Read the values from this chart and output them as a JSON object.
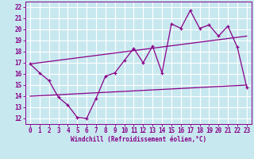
{
  "bg_color": "#c8e8f0",
  "line_color": "#880088",
  "grid_color": "#ffffff",
  "xlim": [
    -0.5,
    23.5
  ],
  "ylim": [
    11.5,
    22.5
  ],
  "xticks": [
    0,
    1,
    2,
    3,
    4,
    5,
    6,
    7,
    8,
    9,
    10,
    11,
    12,
    13,
    14,
    15,
    16,
    17,
    18,
    19,
    20,
    21,
    22,
    23
  ],
  "yticks": [
    12,
    13,
    14,
    15,
    16,
    17,
    18,
    19,
    20,
    21,
    22
  ],
  "xlabel": "Windchill (Refroidissement éolien,°C)",
  "main_x": [
    0,
    1,
    2,
    3,
    4,
    5,
    6,
    7,
    8,
    9,
    10,
    11,
    12,
    13,
    14,
    15,
    16,
    17,
    18,
    19,
    20,
    21,
    22,
    23
  ],
  "main_y": [
    16.9,
    16.1,
    15.4,
    13.9,
    13.2,
    12.1,
    12.0,
    13.8,
    15.8,
    16.1,
    17.2,
    18.3,
    17.0,
    18.5,
    16.1,
    20.5,
    20.1,
    21.7,
    20.1,
    20.4,
    19.4,
    20.3,
    18.4,
    14.8
  ],
  "trend1_x": [
    0,
    23
  ],
  "trend1_y": [
    16.9,
    19.4
  ],
  "trend2_x": [
    0,
    23
  ],
  "trend2_y": [
    14.0,
    15.0
  ]
}
